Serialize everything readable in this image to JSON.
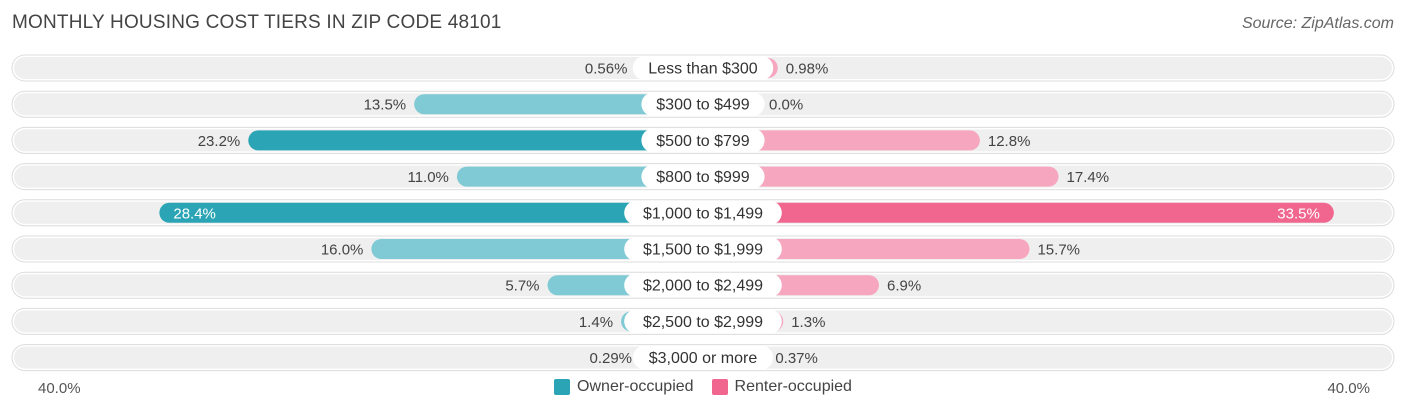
{
  "title": "MONTHLY HOUSING COST TIERS IN ZIP CODE 48101",
  "source": "Source: ZipAtlas.com",
  "colors": {
    "owner": "#2ba5b6",
    "owner_light": "#7fcad4",
    "renter": "#f0668f",
    "renter_light": "#f6a6bf",
    "track": "#efefef"
  },
  "chart_data": {
    "type": "bar",
    "orientation": "horizontal-diverging",
    "categories": [
      "Less than $300",
      "$300 to $499",
      "$500 to $799",
      "$800 to $999",
      "$1,000 to $1,499",
      "$1,500 to $1,999",
      "$2,000 to $2,499",
      "$2,500 to $2,999",
      "$3,000 or more"
    ],
    "series": [
      {
        "name": "Owner-occupied",
        "values": [
          0.56,
          13.5,
          23.2,
          11.0,
          28.4,
          16.0,
          5.7,
          1.4,
          0.29
        ],
        "labels": [
          "0.56%",
          "13.5%",
          "23.2%",
          "11.0%",
          "28.4%",
          "16.0%",
          "5.7%",
          "1.4%",
          "0.29%"
        ]
      },
      {
        "name": "Renter-occupied",
        "values": [
          0.98,
          0.0,
          12.8,
          17.4,
          33.5,
          15.7,
          6.9,
          1.3,
          0.37
        ],
        "labels": [
          "0.98%",
          "0.0%",
          "12.8%",
          "17.4%",
          "33.5%",
          "15.7%",
          "6.9%",
          "1.3%",
          "0.37%"
        ]
      }
    ],
    "xlim": [
      0,
      40
    ],
    "axis_left_label": "40.0%",
    "axis_right_label": "40.0%",
    "legend_position": "bottom-center"
  }
}
